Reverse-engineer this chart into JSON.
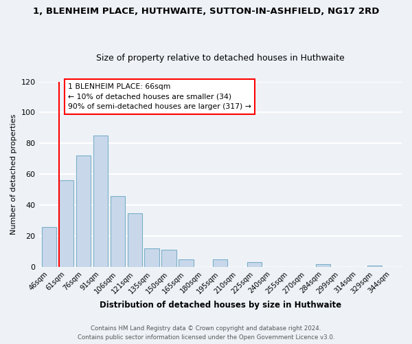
{
  "title": "1, BLENHEIM PLACE, HUTHWAITE, SUTTON-IN-ASHFIELD, NG17 2RD",
  "subtitle": "Size of property relative to detached houses in Huthwaite",
  "xlabel": "Distribution of detached houses by size in Huthwaite",
  "ylabel": "Number of detached properties",
  "bar_labels": [
    "46sqm",
    "61sqm",
    "76sqm",
    "91sqm",
    "106sqm",
    "121sqm",
    "135sqm",
    "150sqm",
    "165sqm",
    "180sqm",
    "195sqm",
    "210sqm",
    "225sqm",
    "240sqm",
    "255sqm",
    "270sqm",
    "284sqm",
    "299sqm",
    "314sqm",
    "329sqm",
    "344sqm"
  ],
  "bar_values": [
    26,
    56,
    72,
    85,
    46,
    35,
    12,
    11,
    5,
    0,
    5,
    0,
    3,
    0,
    0,
    0,
    2,
    0,
    0,
    1,
    0
  ],
  "bar_color": "#c8d8ea",
  "bar_edge_color": "#7aafc8",
  "annotation_box_text": "1 BLENHEIM PLACE: 66sqm\n← 10% of detached houses are smaller (34)\n90% of semi-detached houses are larger (317) →",
  "annotation_box_color": "white",
  "annotation_box_edge_color": "red",
  "vline_color": "red",
  "ylim": [
    0,
    120
  ],
  "yticks": [
    0,
    20,
    40,
    60,
    80,
    100,
    120
  ],
  "footer1": "Contains HM Land Registry data © Crown copyright and database right 2024.",
  "footer2": "Contains public sector information licensed under the Open Government Licence v3.0.",
  "bg_color": "#eef2f7",
  "grid_color": "white",
  "title_fontsize": 9.5,
  "subtitle_fontsize": 9
}
